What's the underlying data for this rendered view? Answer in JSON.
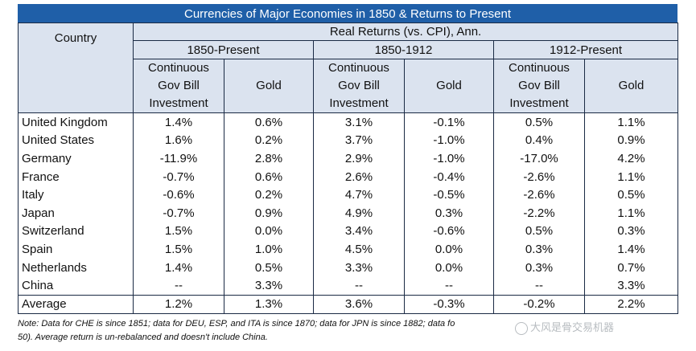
{
  "title": "Currencies of Major Economies in 1850 & Returns to Present",
  "header": {
    "country": "Country",
    "real_returns": "Real Returns (vs. CPI), Ann.",
    "periods": [
      "1850-Present",
      "1850-1912",
      "1912-Present"
    ],
    "sub_bill": [
      "Continuous",
      "Gov Bill",
      "Investment"
    ],
    "sub_gold": "Gold"
  },
  "rows": [
    {
      "country": "United Kingdom",
      "v": [
        "1.4%",
        "0.6%",
        "3.1%",
        "-0.1%",
        "0.5%",
        "1.1%"
      ]
    },
    {
      "country": "United States",
      "v": [
        "1.6%",
        "0.2%",
        "3.7%",
        "-1.0%",
        "0.4%",
        "0.9%"
      ]
    },
    {
      "country": "Germany",
      "v": [
        "-11.9%",
        "2.8%",
        "2.9%",
        "-1.0%",
        "-17.0%",
        "4.2%"
      ]
    },
    {
      "country": "France",
      "v": [
        "-0.7%",
        "0.6%",
        "2.6%",
        "-0.4%",
        "-2.6%",
        "1.1%"
      ]
    },
    {
      "country": "Italy",
      "v": [
        "-0.6%",
        "0.2%",
        "4.7%",
        "-0.5%",
        "-2.6%",
        "0.5%"
      ]
    },
    {
      "country": "Japan",
      "v": [
        "-0.7%",
        "0.9%",
        "4.9%",
        "0.3%",
        "-2.2%",
        "1.1%"
      ]
    },
    {
      "country": "Switzerland",
      "v": [
        "1.5%",
        "0.0%",
        "3.4%",
        "-0.6%",
        "0.5%",
        "0.3%"
      ]
    },
    {
      "country": "Spain",
      "v": [
        "1.5%",
        "1.0%",
        "4.5%",
        "0.0%",
        "0.3%",
        "1.4%"
      ]
    },
    {
      "country": "Netherlands",
      "v": [
        "1.4%",
        "0.5%",
        "3.3%",
        "0.0%",
        "0.3%",
        "0.7%"
      ]
    },
    {
      "country": "China",
      "v": [
        "--",
        "3.3%",
        "--",
        "--",
        "--",
        "3.3%"
      ]
    }
  ],
  "average": {
    "country": "Average",
    "v": [
      "1.2%",
      "1.3%",
      "3.6%",
      "-0.3%",
      "-0.2%",
      "2.2%"
    ]
  },
  "note_line1": "Note: Data for CHE is since 1851; data for DEU, ESP, and ITA is since 1870; data for JPN is since 1882; data fo",
  "note_line2": "50).  Average return is un-rebalanced and doesn't include China.",
  "watermark": "大风是骨交易机器",
  "colors": {
    "title_bg": "#1f5fa8",
    "header_bg": "#dbe3ef",
    "border": "#1a2a44"
  }
}
